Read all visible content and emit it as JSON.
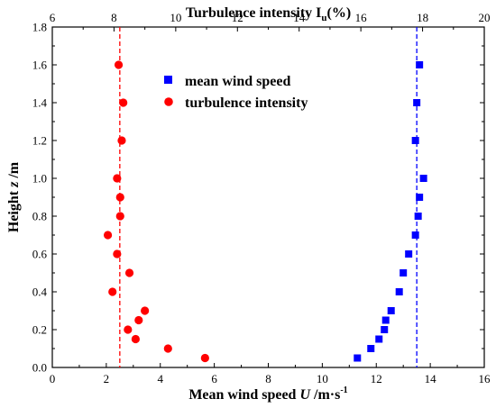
{
  "chart_data": {
    "type": "scatter",
    "title": "",
    "xlabel": "Mean wind speed U /m·s⁻¹",
    "xlabel_parts": [
      "Mean wind speed ",
      "U",
      " /m·s",
      "-1"
    ],
    "x2label": "Turbulence intensity Iu(%)",
    "x2label_parts": [
      "Turbulence intensity I",
      "u",
      "(%)"
    ],
    "ylabel": "Height z /m",
    "ylabel_parts": [
      "Height ",
      "z",
      " /m"
    ],
    "xlim": [
      0,
      16
    ],
    "x2lim": [
      6,
      20
    ],
    "ylim": [
      0,
      1.8
    ],
    "xticks": [
      "0",
      "2",
      "4",
      "6",
      "8",
      "10",
      "12",
      "14",
      "16"
    ],
    "x2ticks": [
      "6",
      "8",
      "10",
      "12",
      "14",
      "16",
      "18",
      "20"
    ],
    "yticks": [
      "0.0",
      "0.2",
      "0.4",
      "0.6",
      "0.8",
      "1.0",
      "1.2",
      "1.4",
      "1.6",
      "1.8"
    ],
    "grid": false,
    "legend_position": "top-right",
    "series": [
      {
        "name": "mean wind speed",
        "axis": "bottom",
        "marker": "square",
        "color": "#0000ff",
        "points": [
          {
            "x": 11.3,
            "y": 0.05
          },
          {
            "x": 11.8,
            "y": 0.1
          },
          {
            "x": 12.1,
            "y": 0.15
          },
          {
            "x": 12.3,
            "y": 0.2
          },
          {
            "x": 12.35,
            "y": 0.25
          },
          {
            "x": 12.55,
            "y": 0.3
          },
          {
            "x": 12.85,
            "y": 0.4
          },
          {
            "x": 13.0,
            "y": 0.5
          },
          {
            "x": 13.2,
            "y": 0.6
          },
          {
            "x": 13.45,
            "y": 0.7
          },
          {
            "x": 13.55,
            "y": 0.8
          },
          {
            "x": 13.6,
            "y": 0.9
          },
          {
            "x": 13.75,
            "y": 1.0
          },
          {
            "x": 13.45,
            "y": 1.2
          },
          {
            "x": 13.5,
            "y": 1.4
          },
          {
            "x": 13.6,
            "y": 1.6
          }
        ]
      },
      {
        "name": "turbulence intensity",
        "axis": "top",
        "marker": "circle",
        "color": "#ff0000",
        "points": [
          {
            "x": 10.95,
            "y": 0.05
          },
          {
            "x": 9.75,
            "y": 0.1
          },
          {
            "x": 8.7,
            "y": 0.15
          },
          {
            "x": 8.45,
            "y": 0.2
          },
          {
            "x": 8.8,
            "y": 0.25
          },
          {
            "x": 9.0,
            "y": 0.3
          },
          {
            "x": 7.95,
            "y": 0.4
          },
          {
            "x": 8.5,
            "y": 0.5
          },
          {
            "x": 8.1,
            "y": 0.6
          },
          {
            "x": 7.8,
            "y": 0.7
          },
          {
            "x": 8.2,
            "y": 0.8
          },
          {
            "x": 8.2,
            "y": 0.9
          },
          {
            "x": 8.1,
            "y": 1.0
          },
          {
            "x": 8.25,
            "y": 1.2
          },
          {
            "x": 8.3,
            "y": 1.4
          },
          {
            "x": 8.15,
            "y": 1.6
          }
        ]
      }
    ],
    "reference_lines": [
      {
        "axis": "bottom",
        "x": 13.5,
        "color": "#0000ff",
        "style": "dashed"
      },
      {
        "axis": "bottom",
        "x": 2.5,
        "color": "#ff0000",
        "style": "dashed"
      }
    ]
  }
}
